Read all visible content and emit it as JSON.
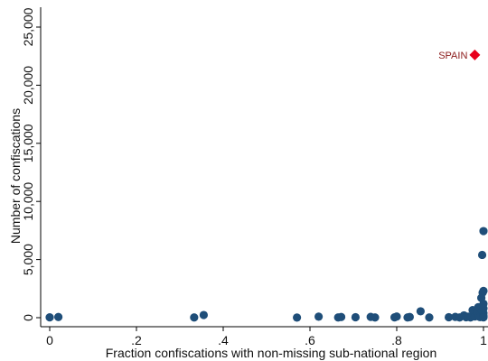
{
  "chart_data": {
    "type": "scatter",
    "title": "",
    "xlabel": "Fraction confiscations with non-missing sub-national region",
    "ylabel": "Number of confiscations",
    "xlim": [
      0,
      1
    ],
    "ylim": [
      0,
      25000
    ],
    "x_ticks": [
      {
        "value": 0,
        "label": "0"
      },
      {
        "value": 0.2,
        "label": ".2"
      },
      {
        "value": 0.4,
        "label": ".4"
      },
      {
        "value": 0.6,
        "label": ".6"
      },
      {
        "value": 0.8,
        "label": ".8"
      },
      {
        "value": 1,
        "label": "1"
      }
    ],
    "y_ticks": [
      {
        "value": 0,
        "label": "0"
      },
      {
        "value": 5000,
        "label": "5,000"
      },
      {
        "value": 10000,
        "label": "10,000"
      },
      {
        "value": 15000,
        "label": "15,000"
      },
      {
        "value": 20000,
        "label": "20,000"
      },
      {
        "value": 25000,
        "label": "25,000"
      }
    ],
    "grid": false,
    "legend": "none",
    "series": [
      {
        "marker": "circle",
        "color": "#1f4e79",
        "points": [
          {
            "x": 0.0,
            "y": 30
          },
          {
            "x": 0.02,
            "y": 60
          },
          {
            "x": 0.333,
            "y": 20
          },
          {
            "x": 0.355,
            "y": 230
          },
          {
            "x": 0.57,
            "y": 10
          },
          {
            "x": 0.62,
            "y": 90
          },
          {
            "x": 0.665,
            "y": 20
          },
          {
            "x": 0.672,
            "y": 60
          },
          {
            "x": 0.705,
            "y": 40
          },
          {
            "x": 0.74,
            "y": 70
          },
          {
            "x": 0.75,
            "y": 20
          },
          {
            "x": 0.795,
            "y": 30
          },
          {
            "x": 0.8,
            "y": 100
          },
          {
            "x": 0.825,
            "y": 20
          },
          {
            "x": 0.83,
            "y": 60
          },
          {
            "x": 0.855,
            "y": 550
          },
          {
            "x": 0.875,
            "y": 20
          },
          {
            "x": 0.92,
            "y": 40
          },
          {
            "x": 0.935,
            "y": 70
          },
          {
            "x": 0.945,
            "y": 20
          },
          {
            "x": 0.955,
            "y": 200
          },
          {
            "x": 0.96,
            "y": 40
          },
          {
            "x": 0.965,
            "y": 90
          },
          {
            "x": 0.97,
            "y": 20
          },
          {
            "x": 0.975,
            "y": 650
          },
          {
            "x": 0.98,
            "y": 100
          },
          {
            "x": 0.985,
            "y": 420
          },
          {
            "x": 0.988,
            "y": 900
          },
          {
            "x": 0.99,
            "y": 150
          },
          {
            "x": 0.992,
            "y": 50
          },
          {
            "x": 0.995,
            "y": 1700
          },
          {
            "x": 0.997,
            "y": 600
          },
          {
            "x": 0.997,
            "y": 5400
          },
          {
            "x": 0.998,
            "y": 2150
          },
          {
            "x": 1.0,
            "y": 7450
          },
          {
            "x": 1.0,
            "y": 2300
          },
          {
            "x": 1.0,
            "y": 1200
          },
          {
            "x": 1.0,
            "y": 800
          },
          {
            "x": 1.0,
            "y": 400
          },
          {
            "x": 1.0,
            "y": 150
          },
          {
            "x": 1.0,
            "y": 30
          }
        ]
      },
      {
        "marker": "diamond",
        "color": "#e8001c",
        "points": [
          {
            "x": 0.98,
            "y": 22600,
            "label": "SPAIN"
          }
        ]
      }
    ]
  }
}
